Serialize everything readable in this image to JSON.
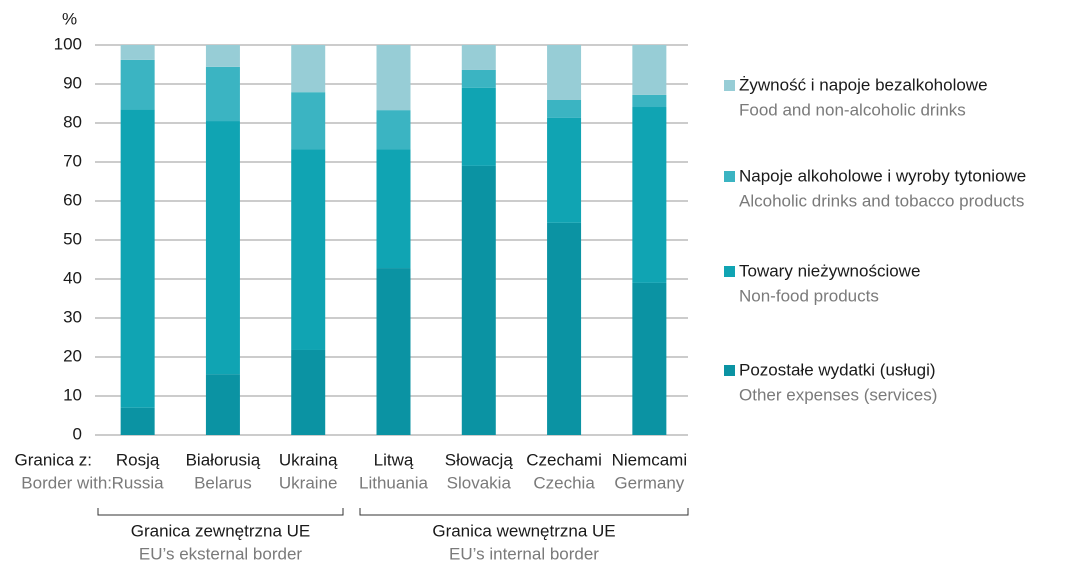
{
  "chart_data": {
    "type": "stacked_bar",
    "y_label": "%",
    "row_label": "Granica z:",
    "row_label_en": "Border with:",
    "categories": [
      "Rosją",
      "Białorusią",
      "Ukrainą",
      "Litwą",
      "Słowacją",
      "Czechami",
      "Niemcami"
    ],
    "categories_en": [
      "Russia",
      "Belarus",
      "Ukraine",
      "Lithuania",
      "Slovakia",
      "Czechia",
      "Germany"
    ],
    "groups": [
      {
        "label": "Granica zewnętrzna UE",
        "label_en": "EU’s eksternal border"
      },
      {
        "label": "Granica wewnętrzna UE",
        "label_en": "EU’s internal border"
      }
    ],
    "series": [
      {
        "name": "Pozostałe wydatki (usługi)",
        "name_en": "Other expenses (services)",
        "color": "#0b93a3",
        "values": [
          7,
          15.6,
          21.8,
          42.8,
          69,
          54.4,
          39
        ]
      },
      {
        "name": "Towary nieżywnościowe",
        "name_en": "Non-food products",
        "color": "#10a4b3",
        "values": [
          76.5,
          64.9,
          51.5,
          30.5,
          20,
          26.9,
          45.1
        ]
      },
      {
        "name": "Napoje alkoholowe i wyroby tytoniowe",
        "name_en": "Alcoholic drinks and tobacco products",
        "color": "#3bb4c2",
        "values": [
          12.7,
          13.9,
          14.6,
          10,
          4.6,
          4.6,
          3.1
        ]
      },
      {
        "name": "Żywność i napoje bezalkoholowe",
        "name_en": "Food and non-alcoholic drinks",
        "color": "#97cdd6",
        "values": [
          3.8,
          5.6,
          12.1,
          16.7,
          6.4,
          14.1,
          12.8
        ]
      }
    ],
    "ylim": [
      0,
      100
    ],
    "yticks": [
      0,
      10,
      20,
      30,
      40,
      50,
      60,
      70,
      80,
      90,
      100
    ],
    "grid": true
  }
}
